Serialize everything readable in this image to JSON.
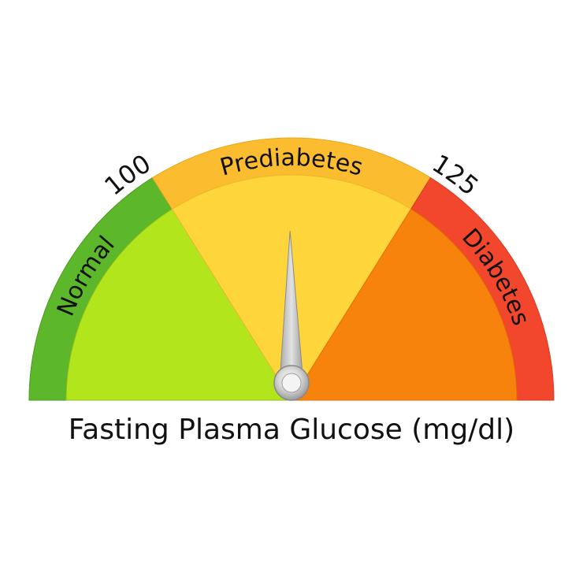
{
  "caption": "Fasting Plasma Glucose (mg/dl)",
  "ticks": [
    {
      "label": "100"
    },
    {
      "label": "125"
    }
  ],
  "zones": [
    {
      "label": "Normal",
      "ring_color": "#5cb82a",
      "fill_color": "#b3e51d"
    },
    {
      "label": "Prediabetes",
      "ring_color": "#fbbd2f",
      "fill_color": "#fed53a"
    },
    {
      "label": "Diabetes",
      "ring_color": "#f2472c",
      "fill_color": "#f7830c"
    }
  ],
  "needle": {
    "zone": "Prediabetes",
    "color": "#c7c7c7"
  }
}
